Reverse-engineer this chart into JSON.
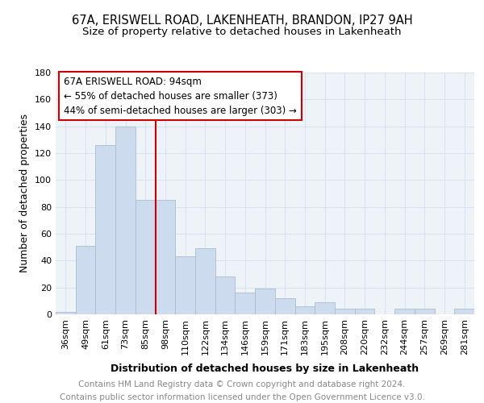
{
  "title_line1": "67A, ERISWELL ROAD, LAKENHEATH, BRANDON, IP27 9AH",
  "title_line2": "Size of property relative to detached houses in Lakenheath",
  "xlabel": "Distribution of detached houses by size in Lakenheath",
  "ylabel": "Number of detached properties",
  "footer_line1": "Contains HM Land Registry data © Crown copyright and database right 2024.",
  "footer_line2": "Contains public sector information licensed under the Open Government Licence v3.0.",
  "categories": [
    "36sqm",
    "49sqm",
    "61sqm",
    "73sqm",
    "85sqm",
    "98sqm",
    "110sqm",
    "122sqm",
    "134sqm",
    "146sqm",
    "159sqm",
    "171sqm",
    "183sqm",
    "195sqm",
    "208sqm",
    "220sqm",
    "232sqm",
    "244sqm",
    "257sqm",
    "269sqm",
    "281sqm"
  ],
  "values": [
    2,
    51,
    126,
    140,
    85,
    85,
    43,
    49,
    28,
    16,
    19,
    12,
    6,
    9,
    4,
    4,
    0,
    4,
    4,
    0,
    4
  ],
  "bar_color": "#ccdcee",
  "bar_edge_color": "#aabcce",
  "vline_x": 5.0,
  "vline_color": "#cc0000",
  "annotation_box_text": "67A ERISWELL ROAD: 94sqm\n← 55% of detached houses are smaller (373)\n44% of semi-detached houses are larger (303) →",
  "annotation_box_color": "#cc0000",
  "annotation_box_bg": "#ffffff",
  "ylim": [
    0,
    180
  ],
  "yticks": [
    0,
    20,
    40,
    60,
    80,
    100,
    120,
    140,
    160,
    180
  ],
  "grid_color": "#d8e4f0",
  "bg_color": "#eef3f8",
  "title_fontsize": 10.5,
  "subtitle_fontsize": 9.5,
  "axis_label_fontsize": 9,
  "tick_fontsize": 8,
  "footer_fontsize": 7.5,
  "annotation_fontsize": 8.5
}
